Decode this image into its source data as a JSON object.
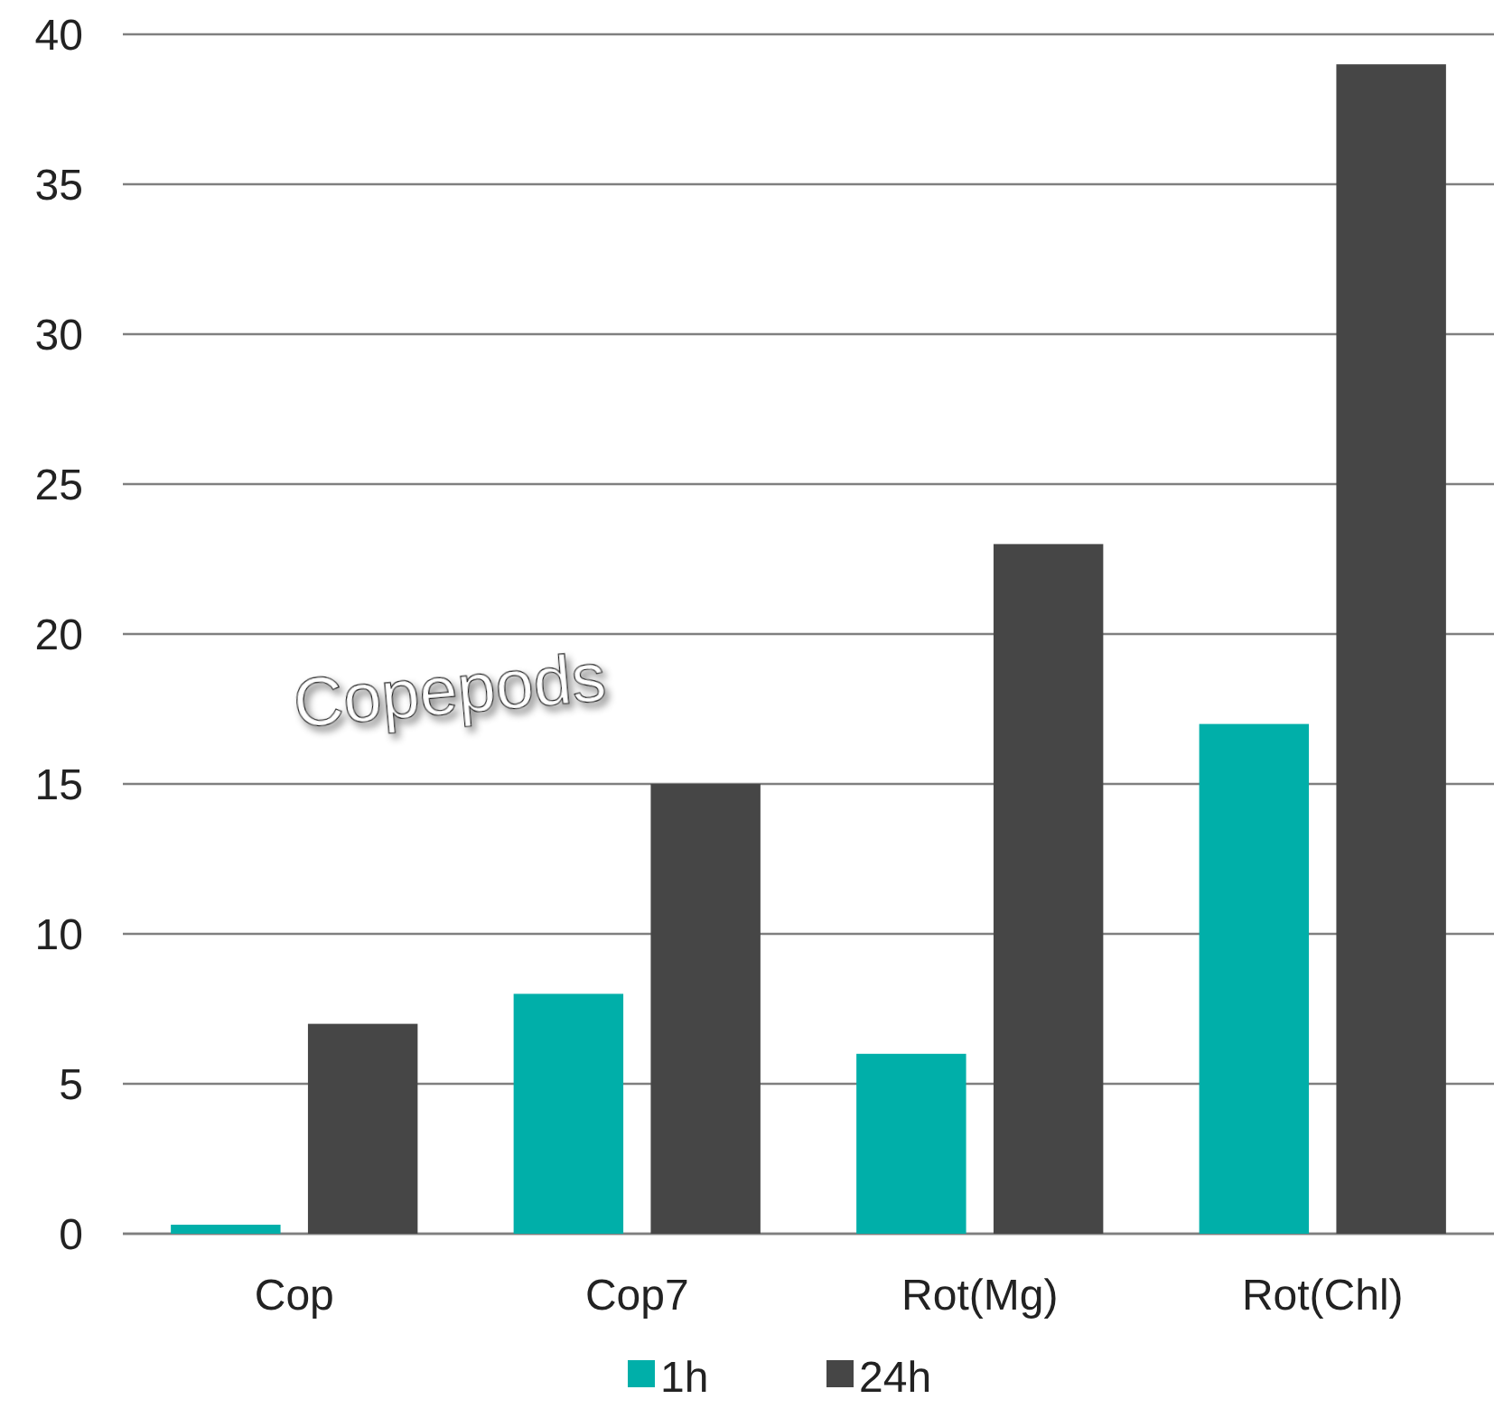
{
  "chart_data": {
    "type": "bar",
    "categories": [
      "Cop",
      "Cop7",
      "Rot(Mg)",
      "Rot(Chl)"
    ],
    "series": [
      {
        "name": "1h",
        "color": "#00afa9",
        "values": [
          0.3,
          8,
          6,
          17
        ]
      },
      {
        "name": "24h",
        "color": "#464646",
        "values": [
          7,
          15,
          23,
          39
        ]
      }
    ],
    "ylim": [
      0,
      40
    ],
    "yticks": [
      0,
      5,
      10,
      15,
      20,
      25,
      30,
      35,
      40
    ],
    "grid": "y",
    "legend": "bottom",
    "annotations": [
      "Copepods"
    ]
  }
}
